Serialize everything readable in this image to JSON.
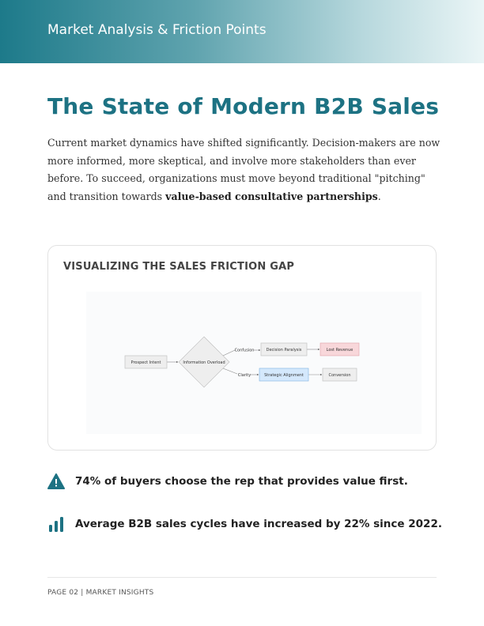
{
  "header": {
    "title": "Market Analysis & Friction Points"
  },
  "main": {
    "title": "The State of Modern B2B Sales",
    "intro_text": "Current market dynamics have shifted significantly. Decision-makers are now more informed, more skeptical, and involve more stakeholders than ever before. To succeed, organizations must move beyond traditional \"pitching\" and transition towards ",
    "intro_bold": "value-based consultative partnerships",
    "intro_end": "."
  },
  "panel": {
    "title": "VISUALIZING THE SALES FRICTION GAP",
    "diagram": {
      "start": "Prospect Intent",
      "decision": "Information Overload",
      "edge_top": "Confusion",
      "edge_bottom": "Clarity",
      "top_node": "Decision Paralysis",
      "top_end": "Lost Revenue",
      "bottom_node": "Strategic Alignment",
      "bottom_end": "Conversion",
      "colors": {
        "negative": "#f8d7da",
        "positive": "#d4e8fc",
        "neutral": "#eeeeee"
      }
    }
  },
  "stats": [
    {
      "icon": "warning-icon",
      "text": "74% of buyers choose the rep that provides value first."
    },
    {
      "icon": "bar-chart-icon",
      "text": "Average B2B sales cycles have increased by 22% since 2022."
    }
  ],
  "footer": {
    "text": "PAGE 02 | MARKET INSIGHTS"
  }
}
